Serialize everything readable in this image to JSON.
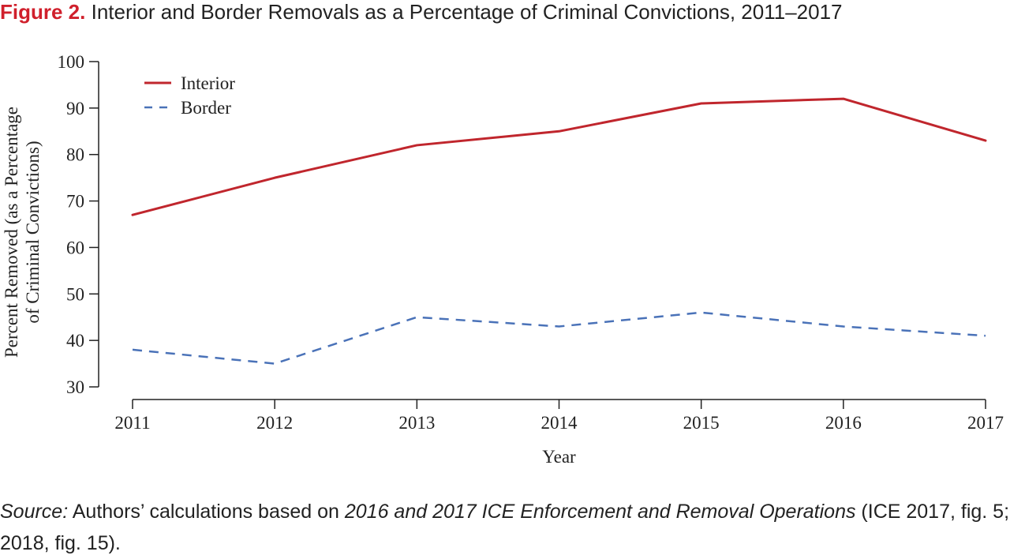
{
  "figure": {
    "label": "Figure 2.",
    "title": "Interior and Border Removals as a Percentage of Criminal Convictions, 2011–2017",
    "label_color": "#d0202c"
  },
  "source": {
    "prefix": "Source:",
    "text1": " Authors’ calculations based on ",
    "report": "2016 and 2017 ICE Enforcement and Removal Operations",
    "text2": " (ICE 2017, fig. 5; 2018, fig. 15)."
  },
  "chart_data": {
    "type": "line",
    "title": "Interior and Border Removals as a Percentage of Criminal Convictions, 2011–2017",
    "xlabel": "Year",
    "ylabel_lines": [
      "Percent Removed (as a Percentage",
      "of Criminal Convictions)"
    ],
    "x": [
      "2011",
      "2012",
      "2013",
      "2014",
      "2015",
      "2016",
      "2017"
    ],
    "ylim": [
      30,
      100
    ],
    "yticks": [
      30,
      40,
      50,
      60,
      70,
      80,
      90,
      100
    ],
    "grid": false,
    "legend_position": "top-left",
    "series": [
      {
        "name": "Interior",
        "values": [
          67,
          75,
          82,
          85,
          91,
          92,
          83
        ],
        "color": "#c0262d",
        "style": "solid"
      },
      {
        "name": "Border",
        "values": [
          38,
          35,
          45,
          43,
          46,
          43,
          41
        ],
        "color": "#4a72b8",
        "style": "dashed"
      }
    ]
  }
}
